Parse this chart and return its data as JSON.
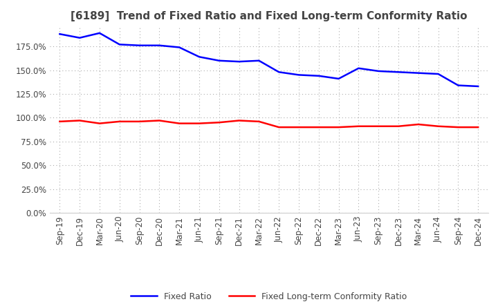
{
  "title": "[6189]  Trend of Fixed Ratio and Fixed Long-term Conformity Ratio",
  "x_labels": [
    "Sep-19",
    "Dec-19",
    "Mar-20",
    "Jun-20",
    "Sep-20",
    "Dec-20",
    "Mar-21",
    "Jun-21",
    "Sep-21",
    "Dec-21",
    "Mar-22",
    "Jun-22",
    "Sep-22",
    "Dec-22",
    "Mar-23",
    "Jun-23",
    "Sep-23",
    "Dec-23",
    "Mar-24",
    "Jun-24",
    "Sep-24",
    "Dec-24"
  ],
  "fixed_ratio": [
    1.88,
    1.84,
    1.89,
    1.77,
    1.76,
    1.76,
    1.74,
    1.64,
    1.6,
    1.59,
    1.6,
    1.48,
    1.45,
    1.44,
    1.41,
    1.52,
    1.49,
    1.48,
    1.47,
    1.46,
    1.34,
    1.33
  ],
  "fixed_lt_ratio": [
    0.96,
    0.97,
    0.94,
    0.96,
    0.96,
    0.97,
    0.94,
    0.94,
    0.95,
    0.97,
    0.96,
    0.9,
    0.9,
    0.9,
    0.9,
    0.91,
    0.91,
    0.91,
    0.93,
    0.91,
    0.9,
    0.9
  ],
  "fixed_ratio_color": "#0000FF",
  "fixed_lt_ratio_color": "#FF0000",
  "ylim": [
    0.0,
    1.95
  ],
  "yticks": [
    0.0,
    0.25,
    0.5,
    0.75,
    1.0,
    1.25,
    1.5,
    1.75
  ],
  "background_color": "#FFFFFF",
  "grid_color": "#AAAAAA",
  "title_color": "#444444",
  "legend_fixed_ratio": "Fixed Ratio",
  "legend_fixed_lt_ratio": "Fixed Long-term Conformity Ratio",
  "title_fontsize": 11,
  "tick_fontsize": 8.5,
  "legend_fontsize": 9
}
